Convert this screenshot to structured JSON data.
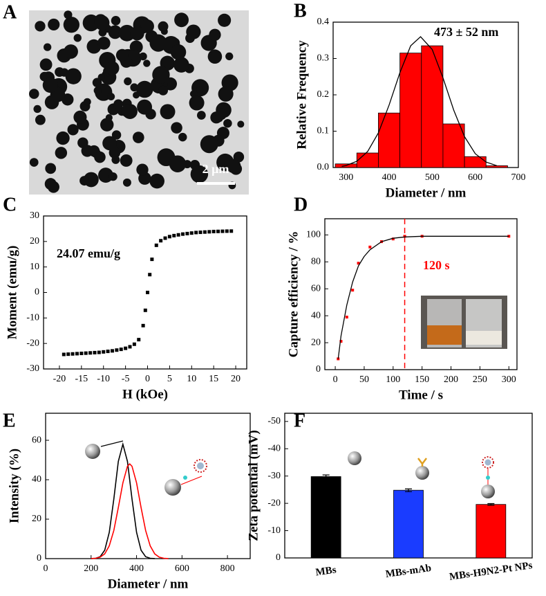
{
  "image": {
    "label": "A",
    "scale_bar": "2 μm"
  },
  "chart_data": [
    {
      "label": "B",
      "type": "histogram",
      "xlabel": "Diameter / nm",
      "ylabel": "Relative Frequency",
      "annotation": "473 ± 52 nm",
      "bins": [
        275,
        325,
        375,
        425,
        475,
        525,
        575,
        625,
        675
      ],
      "values": [
        0.01,
        0.04,
        0.15,
        0.315,
        0.335,
        0.12,
        0.03,
        0.005
      ],
      "color": "#ff0000",
      "fit": {
        "color": "#000000",
        "x": [
          290,
          300,
          325,
          350,
          375,
          400,
          425,
          450,
          473,
          500,
          525,
          550,
          575,
          600,
          625,
          650
        ],
        "values": [
          0.003,
          0.0056,
          0.0172,
          0.044,
          0.095,
          0.172,
          0.261,
          0.335,
          0.36,
          0.325,
          0.247,
          0.158,
          0.085,
          0.038,
          0.015,
          0.005
        ]
      },
      "xlim": [
        270,
        700
      ],
      "ylim": [
        0,
        0.4
      ],
      "xticks": [
        300,
        400,
        500,
        600,
        700
      ],
      "yticks": [
        {
          "value": 0,
          "label": "0.0"
        },
        0.1,
        0.2,
        0.3,
        0.4
      ]
    },
    {
      "label": "C",
      "type": "scatter",
      "xlabel": "H (kOe)",
      "ylabel": "Moment (emu/g)",
      "annotation": "24.07 emu/g",
      "color": "#000000",
      "x": [
        -19,
        -18,
        -17,
        -16,
        -15,
        -14,
        -13,
        -12,
        -11,
        -10,
        -9,
        -8,
        -7,
        -6,
        -5,
        -4,
        -3,
        -2,
        -1,
        -0.5,
        0,
        0.5,
        1,
        2,
        3,
        4,
        5,
        6,
        7,
        8,
        9,
        10,
        11,
        12,
        13,
        14,
        15,
        16,
        17,
        18,
        19
      ],
      "values": [
        -24.3,
        -24.2,
        -24.1,
        -24.0,
        -23.9,
        -23.8,
        -23.7,
        -23.6,
        -23.5,
        -23.3,
        -23.1,
        -22.9,
        -22.6,
        -22.3,
        -21.9,
        -21.3,
        -20.3,
        -18.5,
        -13,
        -7,
        0,
        7,
        13,
        18.5,
        20.3,
        21.3,
        21.9,
        22.3,
        22.6,
        22.9,
        23.1,
        23.3,
        23.5,
        23.6,
        23.7,
        23.8,
        23.9,
        23.95,
        24.0,
        24.05,
        24.07
      ],
      "xlim": [
        -23.6,
        22.5
      ],
      "ylim": [
        -30,
        30
      ],
      "xticks": [
        -20,
        -15,
        -10,
        -5,
        0,
        5,
        10,
        15,
        20
      ],
      "yticks": [
        -30,
        -20,
        -10,
        0,
        10,
        20,
        30
      ]
    },
    {
      "label": "D",
      "type": "scatter",
      "xlabel": "Time / s",
      "ylabel": "Capture efficiency / %",
      "annotation": "120 s",
      "annotation_color": "#ff0000",
      "color": "#ff0000",
      "x": [
        5,
        10,
        20,
        30,
        40,
        60,
        80,
        100,
        120,
        150,
        300
      ],
      "values": [
        8,
        21,
        39,
        59,
        79,
        91,
        95,
        97,
        99,
        99,
        99
      ],
      "fit": {
        "color": "#000000",
        "x": [
          5,
          10,
          20,
          30,
          40,
          50,
          60,
          80,
          100,
          120,
          150,
          200,
          300
        ],
        "values": [
          8,
          25,
          48,
          65,
          77,
          84,
          89,
          95,
          97.5,
          98.5,
          99,
          99,
          99
        ]
      },
      "vline": 120,
      "xlim": [
        -18,
        314
      ],
      "ylim": [
        0,
        112
      ],
      "xticks": [
        0,
        50,
        100,
        150,
        200,
        250,
        300
      ],
      "yticks": [
        0,
        20,
        40,
        60,
        80,
        100
      ]
    },
    {
      "label": "E",
      "type": "line",
      "xlabel": "Diameter / nm",
      "ylabel": "Intensity (%)",
      "series": [
        {
          "color": "#000000",
          "x": [
            200,
            220,
            240,
            260,
            280,
            300,
            320,
            340,
            360,
            380,
            400,
            420,
            440,
            460,
            480
          ],
          "values": [
            0.02,
            0.16,
            0.98,
            4.26,
            13.3,
            30.2,
            49.3,
            58,
            49.3,
            30.2,
            13.3,
            4.26,
            0.98,
            0.16,
            0.02
          ]
        },
        {
          "color": "#ff0000",
          "x": [
            200,
            220,
            240,
            260,
            280,
            300,
            320,
            340,
            360,
            370,
            380,
            400,
            420,
            440,
            460,
            480,
            500,
            520,
            540
          ],
          "values": [
            0.04,
            0.19,
            0.74,
            2.4,
            6.5,
            14.3,
            25.9,
            38.4,
            46.8,
            48,
            46.8,
            38.4,
            25.9,
            14.3,
            6.5,
            2.4,
            0.74,
            0.19,
            0.04
          ]
        }
      ],
      "xlim": [
        0,
        900
      ],
      "ylim": [
        0,
        73.7
      ],
      "xticks": [
        0,
        200,
        400,
        600,
        800
      ],
      "yticks": [
        0,
        20,
        40,
        60
      ]
    },
    {
      "label": "F",
      "type": "bar",
      "ylabel": "Zeta potential (mV)",
      "categories": [
        "MBs",
        "MBs-mAb",
        "MBs-H9N2-Pt NPs"
      ],
      "values": [
        -29.8,
        -24.8,
        -19.6
      ],
      "errors": [
        0.6,
        0.5,
        0.3
      ],
      "colors": [
        "#000000",
        "#1a3cff",
        "#ff0000"
      ],
      "ylim": [
        0,
        -53
      ],
      "yticks": [
        0,
        -10,
        -20,
        -30,
        -40,
        -50
      ]
    }
  ]
}
